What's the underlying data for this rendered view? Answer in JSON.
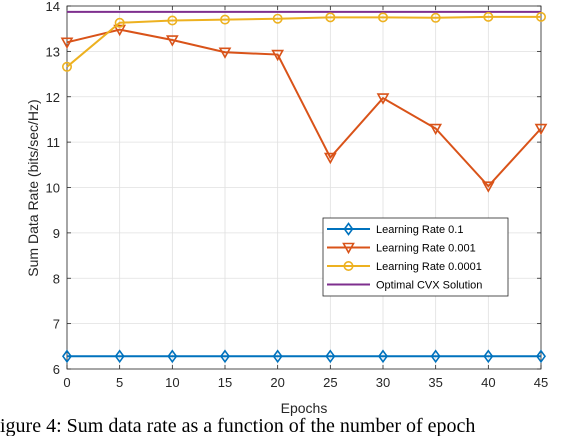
{
  "caption": "igure 4: Sum data rate as a function of the number of epoch",
  "chart_data": {
    "type": "line",
    "xlabel": "Epochs",
    "ylabel": "Sum Data Rate (bits/sec/Hz)",
    "xlim": [
      0,
      45
    ],
    "ylim": [
      6,
      14
    ],
    "x_ticks": [
      0,
      5,
      10,
      15,
      20,
      25,
      30,
      35,
      40,
      45
    ],
    "y_ticks": [
      6,
      7,
      8,
      9,
      10,
      11,
      12,
      13,
      14
    ],
    "grid": true,
    "legend_position": "lower-right",
    "x": [
      0,
      5,
      10,
      15,
      20,
      25,
      30,
      35,
      40,
      45
    ],
    "series": [
      {
        "name": "Learning Rate 0.1",
        "color": "#0072BD",
        "marker": "diamond",
        "values": [
          6.28,
          6.28,
          6.28,
          6.28,
          6.28,
          6.28,
          6.28,
          6.28,
          6.28,
          6.28
        ]
      },
      {
        "name": "Learning Rate 0.001",
        "color": "#D95319",
        "marker": "triangle-down",
        "values": [
          13.2,
          13.48,
          13.25,
          12.98,
          12.93,
          10.66,
          11.97,
          11.3,
          10.03,
          11.3
        ]
      },
      {
        "name": "Learning Rate 0.0001",
        "color": "#EDB120",
        "marker": "circle",
        "values": [
          12.66,
          13.63,
          13.68,
          13.7,
          13.72,
          13.75,
          13.75,
          13.74,
          13.76,
          13.76
        ]
      },
      {
        "name": "Optimal CVX Solution",
        "color": "#7E2F8E",
        "marker": "none",
        "values": [
          13.87,
          13.87,
          13.87,
          13.87,
          13.87,
          13.87,
          13.87,
          13.87,
          13.87,
          13.87
        ]
      }
    ]
  }
}
